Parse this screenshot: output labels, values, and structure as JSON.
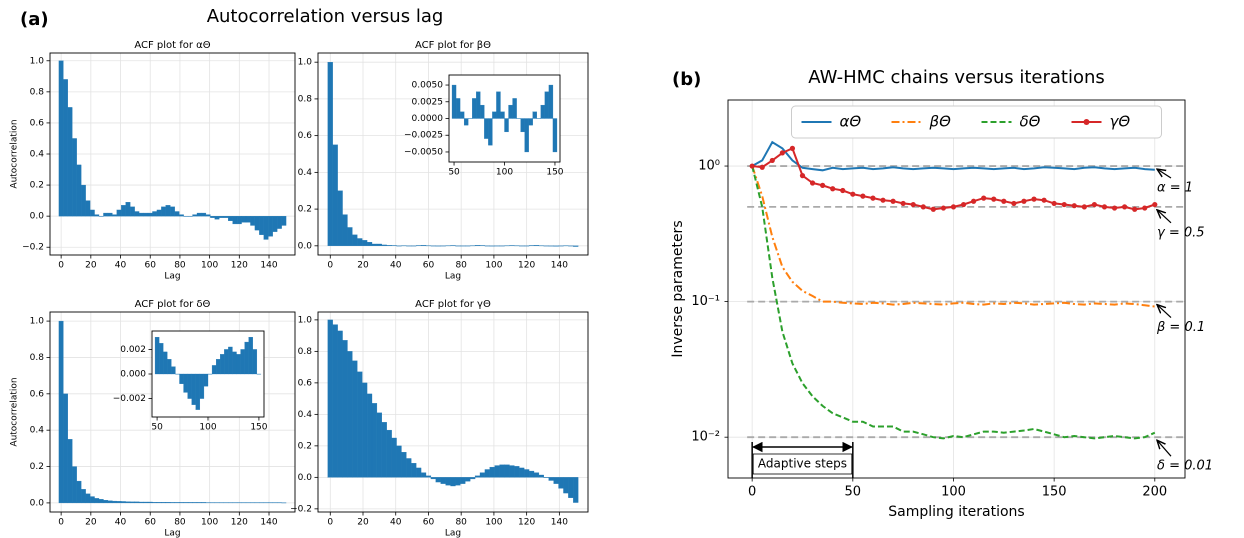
{
  "panel_a": {
    "label": "(a)",
    "title": "Autocorrelation versus lag"
  },
  "chart_data": [
    {
      "type": "bar",
      "title": "ACF plot for αΘ",
      "xlabel": "Lag",
      "ylabel": "Autocorrelation",
      "color": "#1f77b4",
      "grid": true,
      "x": [
        0,
        3,
        6,
        9,
        12,
        15,
        18,
        21,
        24,
        27,
        30,
        33,
        36,
        39,
        42,
        45,
        48,
        51,
        54,
        57,
        60,
        63,
        66,
        69,
        72,
        75,
        78,
        81,
        84,
        87,
        90,
        93,
        96,
        99,
        102,
        105,
        108,
        111,
        114,
        117,
        120,
        123,
        126,
        129,
        132,
        135,
        138,
        141,
        144,
        147,
        150
      ],
      "values": [
        1.0,
        0.88,
        0.7,
        0.5,
        0.33,
        0.2,
        0.1,
        0.04,
        0.01,
        0.0,
        0.02,
        0.02,
        0.01,
        0.04,
        0.07,
        0.09,
        0.06,
        0.03,
        0.02,
        0.02,
        0.02,
        0.03,
        0.04,
        0.06,
        0.07,
        0.06,
        0.03,
        0.01,
        0.0,
        0.0,
        0.01,
        0.02,
        0.02,
        0.01,
        -0.01,
        -0.02,
        -0.01,
        -0.01,
        -0.03,
        -0.05,
        -0.05,
        -0.04,
        -0.04,
        -0.06,
        -0.09,
        -0.12,
        -0.15,
        -0.13,
        -0.1,
        -0.08,
        -0.06
      ],
      "xlim": [
        -7.5,
        157.5
      ],
      "ylim": [
        -0.25,
        1.05
      ],
      "xticks": [
        0,
        20,
        40,
        60,
        80,
        100,
        120,
        140
      ],
      "yticks": [
        {
          "value": -0.2,
          "label": "−0.2"
        },
        {
          "value": 0,
          "label": "0.0"
        },
        0.2,
        0.4,
        0.6,
        0.8,
        {
          "value": 1,
          "label": "1.0"
        }
      ]
    },
    {
      "type": "bar",
      "title": "ACF plot for βΘ",
      "xlabel": "Lag",
      "color": "#1f77b4",
      "grid": true,
      "x": [
        0,
        3,
        6,
        9,
        12,
        15,
        18,
        21,
        24,
        27,
        30,
        33,
        36,
        39,
        42,
        45,
        48,
        51,
        54,
        57,
        60,
        63,
        66,
        69,
        72,
        75,
        78,
        81,
        84,
        87,
        90,
        93,
        96,
        99,
        102,
        105,
        108,
        111,
        114,
        117,
        120,
        123,
        126,
        129,
        132,
        135,
        138,
        141,
        144,
        147,
        150
      ],
      "values": [
        1.0,
        0.55,
        0.3,
        0.17,
        0.1,
        0.06,
        0.04,
        0.03,
        0.02,
        0.01,
        0.01,
        0.005,
        0.003,
        0.002,
        0.0,
        0.001,
        0.0,
        -0.001,
        0.002,
        0.003,
        0.001,
        0.0,
        -0.002,
        -0.001,
        0.001,
        0.002,
        0.0,
        -0.001,
        0.0,
        0.001,
        0.003,
        0.002,
        0.0,
        -0.002,
        -0.001,
        0.0,
        0.001,
        0.002,
        0.001,
        0.0,
        0.0,
        0.002,
        0.003,
        0.001,
        0.0,
        -0.002,
        -0.003,
        0.0,
        0.001,
        0.0,
        -0.004
      ],
      "xlim": [
        -7.5,
        157.5
      ],
      "ylim": [
        -0.05,
        1.05
      ],
      "xticks": [
        0,
        20,
        40,
        60,
        80,
        100,
        120,
        140
      ],
      "yticks": [
        {
          "value": 0,
          "label": "0.0"
        },
        0.2,
        0.4,
        0.6,
        0.8,
        {
          "value": 1,
          "label": "1.0"
        }
      ]
    },
    {
      "type": "bar",
      "inset": true,
      "color": "#1f77b4",
      "grid": false,
      "x": [
        50,
        54,
        58,
        62,
        66,
        70,
        74,
        78,
        82,
        86,
        90,
        94,
        98,
        102,
        106,
        110,
        114,
        118,
        122,
        126,
        130,
        134,
        138,
        142,
        146,
        150
      ],
      "values": [
        0.005,
        0.003,
        0.001,
        -0.001,
        0.0,
        0.003,
        0.004,
        0.002,
        -0.003,
        -0.004,
        0.001,
        0.004,
        0.001,
        -0.002,
        0.002,
        0.003,
        0.0,
        -0.002,
        -0.005,
        -0.001,
        0.001,
        0.0,
        0.002,
        0.004,
        0.005,
        -0.005
      ],
      "xlim": [
        45,
        155
      ],
      "ylim": [
        -0.0065,
        0.0065
      ],
      "xticks": [
        50,
        100,
        150
      ],
      "yticks": [
        {
          "value": -0.005,
          "label": "−0.0050"
        },
        {
          "value": -0.0025,
          "label": "−0.0025"
        },
        {
          "value": 0,
          "label": "0.0000"
        },
        {
          "value": 0.0025,
          "label": "0.0025"
        },
        {
          "value": 0.005,
          "label": "0.0050"
        }
      ]
    },
    {
      "type": "bar",
      "title": "ACF plot for δΘ",
      "xlabel": "Lag",
      "ylabel": "Autocorrelation",
      "color": "#1f77b4",
      "grid": true,
      "x": [
        0,
        3,
        6,
        9,
        12,
        15,
        18,
        21,
        24,
        27,
        30,
        33,
        36,
        39,
        42,
        45,
        48,
        51,
        54,
        57,
        60,
        63,
        66,
        69,
        72,
        75,
        78,
        81,
        84,
        87,
        90,
        93,
        96,
        99,
        102,
        105,
        108,
        111,
        114,
        117,
        120,
        123,
        126,
        129,
        132,
        135,
        138,
        141,
        144,
        147,
        150
      ],
      "values": [
        1.0,
        0.6,
        0.35,
        0.2,
        0.12,
        0.075,
        0.05,
        0.035,
        0.025,
        0.02,
        0.015,
        0.012,
        0.01,
        0.009,
        0.008,
        0.007,
        0.006,
        0.006,
        0.005,
        0.005,
        0.005,
        0.004,
        0.004,
        0.004,
        0.004,
        0.003,
        0.003,
        0.003,
        0.003,
        0.003,
        0.003,
        0.003,
        0.003,
        0.002,
        0.002,
        0.002,
        0.002,
        0.002,
        0.002,
        0.002,
        0.002,
        0.002,
        0.002,
        0.002,
        0.002,
        0.002,
        0.002,
        0.002,
        0.002,
        0.002,
        0.001
      ],
      "xlim": [
        -7.5,
        157.5
      ],
      "ylim": [
        -0.05,
        1.05
      ],
      "xticks": [
        0,
        20,
        40,
        60,
        80,
        100,
        120,
        140
      ],
      "yticks": [
        {
          "value": 0,
          "label": "0.0"
        },
        0.2,
        0.4,
        0.6,
        0.8,
        {
          "value": 1,
          "label": "1.0"
        }
      ]
    },
    {
      "type": "bar",
      "inset": true,
      "color": "#1f77b4",
      "grid": false,
      "x": [
        50,
        54,
        58,
        62,
        66,
        70,
        74,
        78,
        82,
        86,
        90,
        94,
        98,
        102,
        106,
        110,
        114,
        118,
        122,
        126,
        130,
        134,
        138,
        142,
        146,
        150
      ],
      "values": [
        0.003,
        0.0025,
        0.0018,
        0.0012,
        0.0006,
        0.0,
        -0.0008,
        -0.0015,
        -0.002,
        -0.0025,
        -0.0029,
        -0.002,
        -0.001,
        0.0,
        0.0007,
        0.0012,
        0.0016,
        0.002,
        0.0022,
        0.0018,
        0.0016,
        0.002,
        0.0026,
        0.003,
        0.002,
        0.0
      ],
      "xlim": [
        45,
        155
      ],
      "ylim": [
        -0.0035,
        0.0035
      ],
      "xticks": [
        50,
        100,
        150
      ],
      "yticks": [
        {
          "value": -0.002,
          "label": "−0.002"
        },
        {
          "value": 0,
          "label": "0.000"
        },
        0.002
      ]
    },
    {
      "type": "bar",
      "title": "ACF plot for γΘ",
      "xlabel": "Lag",
      "color": "#1f77b4",
      "grid": true,
      "x": [
        0,
        3,
        6,
        9,
        12,
        15,
        18,
        21,
        24,
        27,
        30,
        33,
        36,
        39,
        42,
        45,
        48,
        51,
        54,
        57,
        60,
        63,
        66,
        69,
        72,
        75,
        78,
        81,
        84,
        87,
        90,
        93,
        96,
        99,
        102,
        105,
        108,
        111,
        114,
        117,
        120,
        123,
        126,
        129,
        132,
        135,
        138,
        141,
        144,
        147,
        150
      ],
      "values": [
        1.0,
        0.97,
        0.93,
        0.87,
        0.8,
        0.74,
        0.67,
        0.6,
        0.53,
        0.47,
        0.41,
        0.35,
        0.3,
        0.25,
        0.2,
        0.16,
        0.12,
        0.09,
        0.06,
        0.03,
        0.01,
        -0.01,
        -0.03,
        -0.04,
        -0.05,
        -0.055,
        -0.05,
        -0.04,
        -0.025,
        -0.01,
        0.01,
        0.03,
        0.05,
        0.065,
        0.075,
        0.08,
        0.08,
        0.075,
        0.07,
        0.06,
        0.05,
        0.04,
        0.03,
        0.015,
        0.0,
        -0.02,
        -0.04,
        -0.07,
        -0.1,
        -0.13,
        -0.16
      ],
      "xlim": [
        -7.5,
        157.5
      ],
      "ylim": [
        -0.22,
        1.05
      ],
      "xticks": [
        0,
        20,
        40,
        60,
        80,
        100,
        120,
        140
      ],
      "yticks": [
        {
          "value": -0.2,
          "label": "−0.2"
        },
        {
          "value": 0,
          "label": "0.0"
        },
        0.2,
        0.4,
        0.6,
        0.8,
        {
          "value": 1,
          "label": "1.0"
        }
      ]
    },
    {
      "type": "line",
      "panel_label": "(b)",
      "title": "AW-HMC chains versus iterations",
      "xlabel": "Sampling iterations",
      "ylabel": "Inverse parameters",
      "log": true,
      "grid": true,
      "legend": "upper center",
      "x": [
        0,
        5,
        10,
        15,
        20,
        25,
        30,
        35,
        40,
        45,
        50,
        55,
        60,
        65,
        70,
        75,
        80,
        85,
        90,
        95,
        100,
        105,
        110,
        115,
        120,
        125,
        130,
        135,
        140,
        145,
        150,
        155,
        160,
        165,
        170,
        175,
        180,
        185,
        190,
        195,
        200
      ],
      "series": [
        {
          "name": "αΘ",
          "color": "#1f77b4",
          "style": "solid",
          "marker": false,
          "values": [
            1.0,
            1.1,
            1.5,
            1.35,
            1.1,
            0.97,
            0.95,
            0.93,
            0.97,
            0.95,
            0.96,
            0.97,
            0.95,
            0.96,
            0.98,
            0.96,
            0.95,
            0.96,
            0.97,
            0.96,
            0.95,
            0.96,
            0.97,
            0.96,
            0.95,
            0.96,
            0.97,
            0.95,
            0.96,
            0.98,
            0.97,
            0.96,
            0.95,
            0.97,
            0.98,
            0.96,
            0.95,
            0.96,
            0.97,
            0.95,
            0.94
          ]
        },
        {
          "name": "βΘ",
          "color": "#ff7f0e",
          "style": "dashdot",
          "marker": false,
          "values": [
            1.0,
            0.6,
            0.3,
            0.18,
            0.14,
            0.12,
            0.11,
            0.1,
            0.1,
            0.098,
            0.097,
            0.096,
            0.098,
            0.097,
            0.095,
            0.096,
            0.098,
            0.097,
            0.096,
            0.095,
            0.097,
            0.098,
            0.096,
            0.095,
            0.097,
            0.096,
            0.098,
            0.097,
            0.095,
            0.096,
            0.097,
            0.098,
            0.096,
            0.095,
            0.097,
            0.096,
            0.095,
            0.097,
            0.096,
            0.094,
            0.092
          ]
        },
        {
          "name": "δΘ",
          "color": "#2ca02c",
          "style": "dashed",
          "marker": false,
          "values": [
            1.0,
            0.5,
            0.15,
            0.06,
            0.035,
            0.025,
            0.02,
            0.017,
            0.015,
            0.014,
            0.013,
            0.013,
            0.012,
            0.012,
            0.012,
            0.011,
            0.011,
            0.0105,
            0.01,
            0.0098,
            0.0102,
            0.01,
            0.0105,
            0.011,
            0.011,
            0.0108,
            0.011,
            0.0112,
            0.0115,
            0.011,
            0.0105,
            0.01,
            0.0102,
            0.01,
            0.0098,
            0.01,
            0.0102,
            0.01,
            0.0098,
            0.01,
            0.0108
          ]
        },
        {
          "name": "γΘ",
          "color": "#d62728",
          "style": "solid",
          "marker": true,
          "values": [
            1.0,
            0.98,
            1.1,
            1.25,
            1.35,
            0.85,
            0.75,
            0.72,
            0.68,
            0.66,
            0.62,
            0.6,
            0.58,
            0.56,
            0.55,
            0.53,
            0.52,
            0.5,
            0.48,
            0.49,
            0.5,
            0.52,
            0.55,
            0.58,
            0.57,
            0.55,
            0.53,
            0.55,
            0.57,
            0.56,
            0.53,
            0.52,
            0.51,
            0.5,
            0.52,
            0.5,
            0.49,
            0.5,
            0.48,
            0.49,
            0.52
          ]
        }
      ],
      "ref_lines": [
        {
          "value": 1,
          "label": "α = 1"
        },
        {
          "value": 0.5,
          "label": "γ = 0.5"
        },
        {
          "value": 0.1,
          "label": "β = 0.1"
        },
        {
          "value": 0.01,
          "label": "δ = 0.01"
        }
      ],
      "span": {
        "label": "Adaptive steps",
        "x": [
          0,
          50
        ]
      },
      "xlim": [
        -12,
        215
      ],
      "ylim": [
        0.005,
        3.07
      ],
      "xticks": [
        0,
        50,
        100,
        150,
        200
      ],
      "yticks": [
        {
          "value": 0.01,
          "label": "10⁻²"
        },
        {
          "value": 0.1,
          "label": "10⁻¹"
        },
        {
          "value": 1,
          "label": "10⁰"
        }
      ]
    }
  ]
}
